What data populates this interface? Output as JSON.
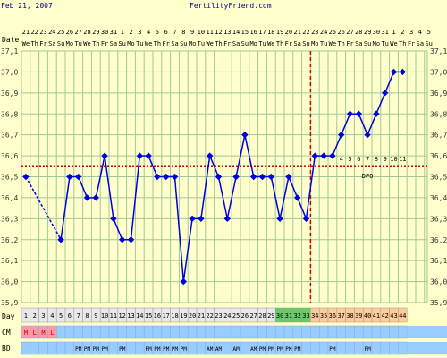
{
  "header": {
    "date": "Feb 21, 2007",
    "site": "FertilityFriend.com"
  },
  "colors": {
    "background": "#ffffcc",
    "grid": "#a0c898",
    "line": "#0000e0",
    "coverline": "#cc0000",
    "day_green": "#66cc66",
    "day_orange": "#ffcc99",
    "row_blue": "#99ccff",
    "menses_pink": "#ff99aa",
    "menses_text": "#cc0000"
  },
  "chart_data": {
    "type": "line",
    "title": "",
    "row_labels": {
      "date": "Date",
      "day": "Day",
      "cm": "CM",
      "bd": "BD"
    },
    "dates": [
      "21",
      "22",
      "23",
      "24",
      "25",
      "26",
      "27",
      "28",
      "29",
      "30",
      "31",
      "1",
      "2",
      "3",
      "4",
      "5",
      "6",
      "7",
      "8",
      "9",
      "10",
      "11",
      "12",
      "13",
      "14",
      "15",
      "16",
      "17",
      "18",
      "19",
      "20",
      "21",
      "22",
      "23",
      "24",
      "25",
      "26",
      "27",
      "28",
      "29",
      "30",
      "31",
      "1",
      "2",
      "3",
      "4",
      "5"
    ],
    "weekdays": [
      "We",
      "Th",
      "Fr",
      "Sa",
      "Su",
      "Mo",
      "Tu",
      "We",
      "Th",
      "Fr",
      "Sa",
      "Su",
      "Mo",
      "Tu",
      "We",
      "Th",
      "Fr",
      "Sa",
      "Su",
      "Mo",
      "Tu",
      "We",
      "Th",
      "Fr",
      "Sa",
      "Su",
      "Mo",
      "Tu",
      "We",
      "Th",
      "Fr",
      "Sa",
      "Su",
      "Mo",
      "Tu",
      "We",
      "Th",
      "Fr",
      "Sa",
      "Su",
      "Mo",
      "Tu",
      "We",
      "Th",
      "Fr",
      "Sa",
      "Su"
    ],
    "cycle_days": [
      "1",
      "2",
      "3",
      "4",
      "5",
      "6",
      "7",
      "8",
      "9",
      "10",
      "11",
      "12",
      "13",
      "14",
      "15",
      "16",
      "17",
      "18",
      "19",
      "20",
      "21",
      "22",
      "23",
      "24",
      "25",
      "26",
      "27",
      "28",
      "29",
      "30",
      "31",
      "32",
      "33",
      "34",
      "35",
      "36",
      "37",
      "38",
      "39",
      "40",
      "41",
      "42",
      "43",
      "44"
    ],
    "day_colors": [
      "",
      "",
      "",
      "",
      "",
      "",
      "",
      "",
      "",
      "",
      "",
      "",
      "",
      "",
      "",
      "",
      "",
      "",
      "",
      "",
      "",
      "",
      "",
      "",
      "",
      "",
      "",
      "",
      "",
      "green",
      "green",
      "green",
      "green",
      "orange",
      "orange",
      "orange",
      "orange",
      "orange",
      "orange",
      "orange",
      "orange",
      "orange",
      "orange",
      "orange"
    ],
    "cm": [
      "M",
      "L",
      "M",
      "L",
      "",
      "",
      "",
      "",
      "",
      "",
      "",
      "",
      "",
      "",
      "",
      "",
      "",
      "",
      "",
      "",
      "",
      "",
      "",
      "",
      "",
      "",
      "",
      "",
      "",
      "",
      "",
      "",
      "",
      "",
      "",
      "",
      "",
      "",
      "",
      "",
      "",
      "",
      "",
      ""
    ],
    "bd": [
      "",
      "",
      "",
      "",
      "",
      "",
      "PM",
      "PM",
      "PM",
      "PM",
      "",
      "PM",
      "",
      "",
      "PM",
      "PM",
      "PM",
      "PM",
      "PM",
      "",
      "",
      "AM",
      "AM",
      "",
      "AM",
      "",
      "AM",
      "PM",
      "PM",
      "PM",
      "PM",
      "PM",
      "",
      "",
      "",
      "PM",
      "",
      "",
      "",
      "PM",
      "",
      "",
      "",
      ""
    ],
    "temps": [
      36.5,
      null,
      null,
      null,
      36.2,
      36.5,
      36.5,
      36.4,
      36.4,
      36.6,
      36.3,
      36.2,
      36.2,
      36.6,
      36.6,
      36.5,
      36.5,
      36.5,
      36.0,
      36.3,
      36.3,
      36.6,
      36.5,
      36.3,
      36.5,
      36.7,
      36.5,
      36.5,
      36.5,
      36.3,
      36.5,
      36.4,
      36.3,
      36.6,
      36.6,
      36.6,
      36.7,
      36.8,
      36.8,
      36.7,
      36.8,
      36.9,
      37.0,
      37.0
    ],
    "dpo_labels": [
      "4",
      "5",
      "6",
      "7",
      "8",
      "9",
      "10",
      "11"
    ],
    "dpo_text": "DPO",
    "ylim": [
      35.9,
      37.1
    ],
    "y_ticks": [
      "37,1",
      "37,0",
      "36,9",
      "36,8",
      "36,7",
      "36,6",
      "36,5",
      "36,4",
      "36,3",
      "36,2",
      "36,1",
      "36,0",
      "35,9"
    ],
    "coverline": 36.55,
    "ovulation_day": "33",
    "grid": true
  }
}
